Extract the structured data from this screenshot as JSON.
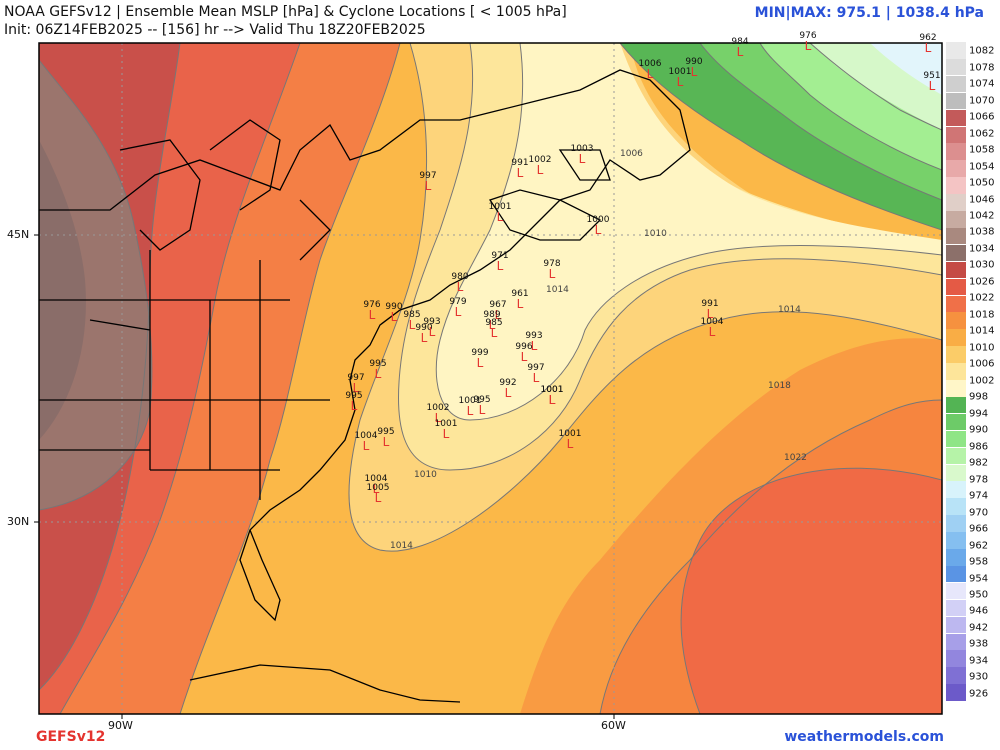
{
  "header": {
    "title_line1": "NOAA GEFSv12 | Ensemble Mean MSLP [hPa] & Cyclone Locations [ < 1005 hPa]",
    "title_line2": "Init: 06Z14FEB2025 -- [156] hr --> Valid Thu 18Z20FEB2025",
    "minmax": "MIN|MAX: 975.1 | 1038.4 hPa"
  },
  "footer": {
    "model": "GEFSv12",
    "site": "weathermodels.com"
  },
  "axes": {
    "lat_labels": [
      "45N",
      "30N"
    ],
    "lon_labels": [
      "90W",
      "60W"
    ]
  },
  "colorbar": {
    "labels": [
      "1082",
      "1078",
      "1074",
      "1070",
      "1066",
      "1062",
      "1058",
      "1054",
      "1050",
      "1046",
      "1042",
      "1038",
      "1034",
      "1030",
      "1026",
      "1022",
      "1018",
      "1014",
      "1010",
      "1006",
      "1002",
      "998",
      "994",
      "990",
      "986",
      "982",
      "978",
      "974",
      "970",
      "966",
      "962",
      "958",
      "954",
      "950",
      "946",
      "942",
      "938",
      "934",
      "930",
      "926"
    ],
    "colors": [
      "#e9e9e9",
      "#dcdcdc",
      "#cfcfcf",
      "#bdbdbd",
      "#c35a5a",
      "#d07575",
      "#dc8f8f",
      "#e8a9a9",
      "#f4c4c4",
      "#e0cfc8",
      "#c7aba1",
      "#a9897f",
      "#8c706a",
      "#c54b45",
      "#e45a45",
      "#f07048",
      "#f6913f",
      "#f9ad45",
      "#fbcc68",
      "#fde59a",
      "#fff6c8",
      "#53b454",
      "#6dcb68",
      "#8fe586",
      "#b6f3a8",
      "#d9f9cc",
      "#d8f3fb",
      "#b8e3f7",
      "#9fd0f3",
      "#85bff0",
      "#6aa9ea",
      "#5a94e4",
      "#e7e7fb",
      "#d2d0f6",
      "#bdb8f0",
      "#a79fe8",
      "#9286de",
      "#7f70d4",
      "#6c5ac9"
    ]
  },
  "contour_labels": [
    "1006",
    "1010",
    "1014",
    "1014",
    "1018",
    "1022",
    "1010",
    "1014"
  ],
  "cyclones": [
    "997",
    "991",
    "1002",
    "1003",
    "1006",
    "1001",
    "1000",
    "1001",
    "990",
    "984",
    "976",
    "962",
    "951",
    "1001",
    "971",
    "978",
    "980",
    "961",
    "976",
    "990",
    "985",
    "979",
    "967",
    "989",
    "985",
    "993",
    "990",
    "993",
    "996",
    "999",
    "997",
    "995",
    "992",
    "1001",
    "995",
    "1002",
    "1001",
    "1004",
    "995",
    "991",
    "1004",
    "1001",
    "1004",
    "1005",
    "997",
    "995",
    "1001"
  ]
}
